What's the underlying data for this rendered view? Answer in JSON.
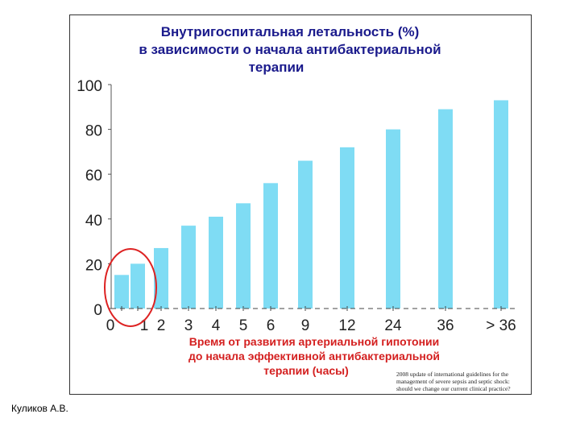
{
  "chart_data": {
    "type": "bar",
    "title_lines": [
      "Внутригоспитальная летальность (%)",
      "в зависимости о начала антибактериальной",
      "терапии"
    ],
    "xlabel_lines": [
      "Время от развития артериальной гипотонии",
      "до начала эффективной антибактериальной",
      "терапии (часы)"
    ],
    "x_ticks": [
      "0",
      "1",
      "2",
      "3",
      "4",
      "5",
      "6",
      "9",
      "12",
      "24",
      "36",
      "> 36"
    ],
    "y_ticks": [
      "0",
      "20",
      "40",
      "60",
      "80",
      "100"
    ],
    "ylim": [
      0,
      100
    ],
    "series": [
      {
        "values": [
          15,
          20,
          27,
          37,
          41,
          47,
          56,
          66,
          72,
          80,
          89,
          93
        ]
      }
    ],
    "bar_color": "#7fdcf4",
    "highlight_color": "#dd2222",
    "highlight_bars": [
      0,
      1
    ]
  },
  "source_note": "2008 update of international guidelines for the management of severe sepsis and septic shock: should we change our current clinical practice?",
  "author": "Куликов А.В."
}
